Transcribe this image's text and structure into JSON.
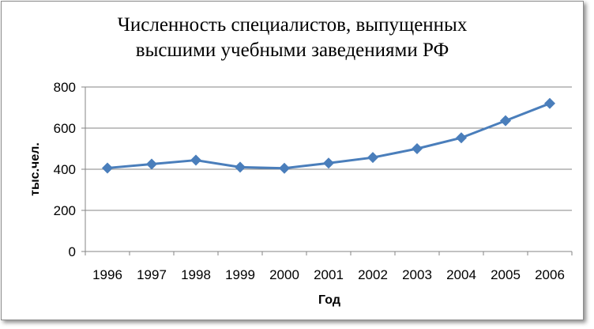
{
  "chart_data": {
    "type": "line",
    "title_line1": "Численность специалистов, выпущенных",
    "title_line2": "высшими учебными заведениями РФ",
    "xlabel": "Год",
    "ylabel": "тыс.чел.",
    "categories": [
      "1996",
      "1997",
      "1998",
      "1999",
      "2000",
      "2001",
      "2002",
      "2003",
      "2004",
      "2005",
      "2006"
    ],
    "series": [
      {
        "values": [
          406,
          425,
          444,
          410,
          405,
          430,
          457,
          500,
          553,
          636,
          720
        ],
        "color": "#4a7ebb"
      }
    ],
    "ylim": [
      0,
      800
    ],
    "yticks": [
      "0",
      "200",
      "400",
      "600",
      "800"
    ],
    "grid": true,
    "legend": "none",
    "marker": "diamond"
  }
}
